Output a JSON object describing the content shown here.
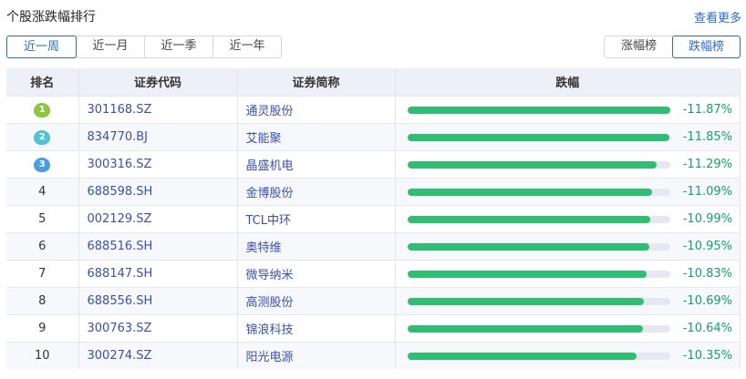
{
  "header": {
    "title": "个股涨跌幅排行",
    "more_label": "查看更多"
  },
  "period_tabs": [
    {
      "label": "近一周",
      "active": true
    },
    {
      "label": "近一月"
    },
    {
      "label": "近一季"
    },
    {
      "label": "近一年"
    }
  ],
  "direction_tabs": [
    {
      "label": "涨幅榜"
    },
    {
      "label": "跌幅榜",
      "active": true
    }
  ],
  "table": {
    "columns": [
      "排名",
      "证券代码",
      "证券简称",
      "跌幅"
    ],
    "medal_colors": [
      "#8cc63f",
      "#4fc3d0",
      "#4a9fe0"
    ],
    "rows": [
      {
        "rank": "1",
        "code": "301168.SZ",
        "name": "通灵股份",
        "change": "-11.87%",
        "value": 11.87
      },
      {
        "rank": "2",
        "code": "834770.BJ",
        "name": "艾能聚",
        "change": "-11.85%",
        "value": 11.85
      },
      {
        "rank": "3",
        "code": "300316.SZ",
        "name": "晶盛机电",
        "change": "-11.29%",
        "value": 11.29
      },
      {
        "rank": "4",
        "code": "688598.SH",
        "name": "金博股份",
        "change": "-11.09%",
        "value": 11.09
      },
      {
        "rank": "5",
        "code": "002129.SZ",
        "name": "TCL中环",
        "change": "-10.99%",
        "value": 10.99
      },
      {
        "rank": "6",
        "code": "688516.SH",
        "name": "奥特维",
        "change": "-10.95%",
        "value": 10.95
      },
      {
        "rank": "7",
        "code": "688147.SH",
        "name": "微导纳米",
        "change": "-10.83%",
        "value": 10.83
      },
      {
        "rank": "8",
        "code": "688556.SH",
        "name": "高测股份",
        "change": "-10.69%",
        "value": 10.69
      },
      {
        "rank": "9",
        "code": "300763.SZ",
        "name": "锦浪科技",
        "change": "-10.64%",
        "value": 10.64
      },
      {
        "rank": "10",
        "code": "300274.SZ",
        "name": "阳光电源",
        "change": "-10.35%",
        "value": 10.35
      }
    ]
  }
}
